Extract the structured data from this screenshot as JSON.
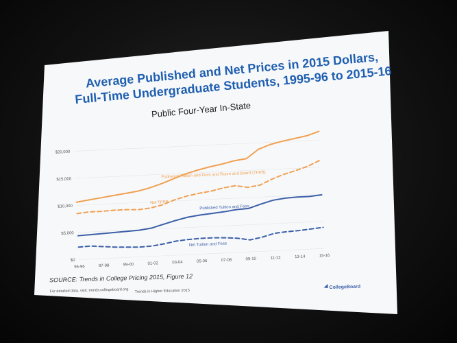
{
  "slide": {
    "title_line1": "Average Published and Net Prices in 2015 Dollars,",
    "title_line2": "Full-Time Undergraduate Students, 1995-96 to 2015-16",
    "subtitle": "Public Four-Year In-State",
    "source": "SOURCE: Trends in College Pricing 2015, Figure 12",
    "footer_left": "For detailed data, visit: trends.collegeboard.org.",
    "footer_center": "Trends in Higher Education 2015",
    "footer_right": "CollegeBoard",
    "brand_icon": "collegeboard-logo-icon"
  },
  "chart_data": {
    "type": "line",
    "title": "Average Published and Net Prices in 2015 Dollars, Full-Time Undergraduate Students, 1995-96 to 2015-16",
    "subtitle": "Public Four-Year In-State",
    "x": [
      "95-96",
      "96-97",
      "97-98",
      "98-99",
      "99-00",
      "00-01",
      "01-02",
      "02-03",
      "03-04",
      "04-05",
      "05-06",
      "06-07",
      "07-08",
      "08-09",
      "09-10",
      "10-11",
      "11-12",
      "12-13",
      "13-14",
      "14-15",
      "15-16"
    ],
    "x_tick_labels": [
      "95-96",
      "97-98",
      "99-00",
      "01-02",
      "03-04",
      "05-06",
      "07-08",
      "09-10",
      "11-12",
      "13-14",
      "15-16"
    ],
    "y_tick_labels": [
      "$0",
      "$5,000",
      "$10,000",
      "$15,000",
      "$20,000"
    ],
    "ylim": [
      0,
      22000
    ],
    "grid": true,
    "series": [
      {
        "name": "Published Tuition and Fees and Room and Board (TFRB)",
        "color": "#f0a050",
        "style": "solid",
        "values": [
          10600,
          10900,
          11200,
          11500,
          11800,
          12100,
          12600,
          13300,
          14100,
          14900,
          15500,
          16000,
          16400,
          16900,
          17200,
          18800,
          19600,
          20100,
          20500,
          20900,
          21600
        ]
      },
      {
        "name": "Net TFRB",
        "color": "#f0a050",
        "style": "dashed",
        "values": [
          8500,
          8700,
          8700,
          8800,
          8800,
          8700,
          8900,
          9400,
          10200,
          10800,
          11200,
          11500,
          12000,
          12300,
          11900,
          12200,
          13200,
          14000,
          14600,
          15300,
          16300
        ]
      },
      {
        "name": "Published Tuition and Fees",
        "color": "#3b5fa8",
        "style": "solid",
        "values": [
          4400,
          4500,
          4600,
          4700,
          4800,
          4900,
          5200,
          5800,
          6400,
          6900,
          7200,
          7400,
          7600,
          7900,
          8000,
          8700,
          9300,
          9600,
          9700,
          9700,
          9900
        ]
      },
      {
        "name": "Net Tuition and Fees",
        "color": "#3b5fa8",
        "style": "dashed",
        "values": [
          2300,
          2400,
          2200,
          2000,
          1900,
          1800,
          1900,
          2200,
          2600,
          2800,
          2900,
          2900,
          2800,
          2600,
          2200,
          2600,
          3200,
          3400,
          3500,
          3700,
          3900
        ]
      }
    ]
  }
}
